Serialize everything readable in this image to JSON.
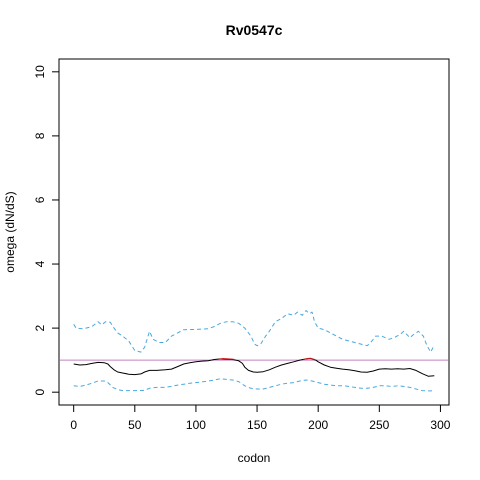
{
  "chart_data": {
    "type": "line",
    "title": "Rv0547c",
    "xlabel": "codon",
    "ylabel": "omega (dN/dS)",
    "xlim": [
      -12,
      307
    ],
    "ylim": [
      -0.4,
      10.4
    ],
    "x_ticks": [
      0,
      50,
      100,
      150,
      200,
      250,
      300
    ],
    "y_ticks": [
      0,
      2,
      4,
      6,
      8,
      10
    ],
    "reference_line": {
      "y": 1,
      "color": "#c080c0"
    },
    "colors": {
      "main": "#000000",
      "bounds": "#4aa8e0",
      "highlight": "#d02020"
    },
    "series": [
      {
        "role": "estimate",
        "style": "solid",
        "color": "#000000",
        "points": [
          [
            0,
            0.88
          ],
          [
            5,
            0.85
          ],
          [
            10,
            0.86
          ],
          [
            15,
            0.9
          ],
          [
            20,
            0.93
          ],
          [
            25,
            0.92
          ],
          [
            28,
            0.88
          ],
          [
            30,
            0.8
          ],
          [
            33,
            0.7
          ],
          [
            36,
            0.63
          ],
          [
            40,
            0.6
          ],
          [
            45,
            0.56
          ],
          [
            50,
            0.55
          ],
          [
            55,
            0.57
          ],
          [
            58,
            0.63
          ],
          [
            62,
            0.68
          ],
          [
            68,
            0.68
          ],
          [
            75,
            0.7
          ],
          [
            80,
            0.72
          ],
          [
            85,
            0.8
          ],
          [
            90,
            0.88
          ],
          [
            95,
            0.92
          ],
          [
            100,
            0.95
          ],
          [
            105,
            0.97
          ],
          [
            110,
            0.98
          ],
          [
            115,
            1.02
          ],
          [
            120,
            1.04
          ],
          [
            125,
            1.03
          ],
          [
            130,
            1.02
          ],
          [
            135,
            0.98
          ],
          [
            138,
            0.9
          ],
          [
            140,
            0.78
          ],
          [
            143,
            0.68
          ],
          [
            147,
            0.63
          ],
          [
            150,
            0.62
          ],
          [
            155,
            0.64
          ],
          [
            160,
            0.7
          ],
          [
            165,
            0.78
          ],
          [
            170,
            0.85
          ],
          [
            175,
            0.9
          ],
          [
            180,
            0.95
          ],
          [
            185,
            1.0
          ],
          [
            190,
            1.04
          ],
          [
            194,
            1.05
          ],
          [
            198,
            1.0
          ],
          [
            200,
            0.95
          ],
          [
            205,
            0.85
          ],
          [
            210,
            0.78
          ],
          [
            215,
            0.75
          ],
          [
            220,
            0.72
          ],
          [
            225,
            0.7
          ],
          [
            230,
            0.67
          ],
          [
            235,
            0.63
          ],
          [
            240,
            0.62
          ],
          [
            245,
            0.66
          ],
          [
            250,
            0.72
          ],
          [
            255,
            0.73
          ],
          [
            260,
            0.72
          ],
          [
            265,
            0.73
          ],
          [
            270,
            0.72
          ],
          [
            275,
            0.74
          ],
          [
            280,
            0.68
          ],
          [
            285,
            0.58
          ],
          [
            290,
            0.5
          ],
          [
            295,
            0.51
          ]
        ]
      },
      {
        "role": "upper bound",
        "style": "dashed",
        "color": "#4aa8e0",
        "points": [
          [
            0,
            2.12
          ],
          [
            2,
            2.0
          ],
          [
            8,
            1.98
          ],
          [
            15,
            2.05
          ],
          [
            20,
            2.2
          ],
          [
            23,
            2.1
          ],
          [
            26,
            2.2
          ],
          [
            30,
            2.18
          ],
          [
            33,
            2.0
          ],
          [
            36,
            1.85
          ],
          [
            40,
            1.75
          ],
          [
            45,
            1.6
          ],
          [
            50,
            1.3
          ],
          [
            55,
            1.25
          ],
          [
            58,
            1.4
          ],
          [
            62,
            1.9
          ],
          [
            65,
            1.65
          ],
          [
            70,
            1.55
          ],
          [
            75,
            1.55
          ],
          [
            80,
            1.75
          ],
          [
            85,
            1.85
          ],
          [
            90,
            1.95
          ],
          [
            100,
            1.96
          ],
          [
            110,
            1.98
          ],
          [
            115,
            2.05
          ],
          [
            120,
            2.15
          ],
          [
            125,
            2.2
          ],
          [
            130,
            2.2
          ],
          [
            135,
            2.15
          ],
          [
            140,
            2.0
          ],
          [
            145,
            1.75
          ],
          [
            148,
            1.5
          ],
          [
            150,
            1.45
          ],
          [
            153,
            1.5
          ],
          [
            157,
            1.75
          ],
          [
            160,
            1.9
          ],
          [
            165,
            2.2
          ],
          [
            170,
            2.3
          ],
          [
            175,
            2.45
          ],
          [
            180,
            2.4
          ],
          [
            183,
            2.5
          ],
          [
            187,
            2.4
          ],
          [
            190,
            2.55
          ],
          [
            193,
            2.45
          ],
          [
            195,
            2.5
          ],
          [
            197,
            2.2
          ],
          [
            200,
            2.0
          ],
          [
            205,
            1.95
          ],
          [
            210,
            1.85
          ],
          [
            215,
            1.75
          ],
          [
            220,
            1.65
          ],
          [
            225,
            1.6
          ],
          [
            230,
            1.55
          ],
          [
            235,
            1.5
          ],
          [
            240,
            1.45
          ],
          [
            243,
            1.55
          ],
          [
            247,
            1.75
          ],
          [
            252,
            1.75
          ],
          [
            258,
            1.65
          ],
          [
            262,
            1.7
          ],
          [
            267,
            1.8
          ],
          [
            270,
            1.9
          ],
          [
            275,
            1.7
          ],
          [
            278,
            1.8
          ],
          [
            282,
            1.9
          ],
          [
            286,
            1.75
          ],
          [
            289,
            1.45
          ],
          [
            292,
            1.25
          ],
          [
            294,
            1.4
          ],
          [
            295,
            1.45
          ]
        ]
      },
      {
        "role": "lower bound",
        "style": "dashed",
        "color": "#4aa8e0",
        "points": [
          [
            0,
            0.2
          ],
          [
            5,
            0.18
          ],
          [
            10,
            0.22
          ],
          [
            15,
            0.28
          ],
          [
            20,
            0.35
          ],
          [
            25,
            0.35
          ],
          [
            28,
            0.3
          ],
          [
            32,
            0.15
          ],
          [
            36,
            0.08
          ],
          [
            40,
            0.05
          ],
          [
            50,
            0.05
          ],
          [
            58,
            0.06
          ],
          [
            62,
            0.12
          ],
          [
            68,
            0.15
          ],
          [
            75,
            0.15
          ],
          [
            80,
            0.18
          ],
          [
            85,
            0.22
          ],
          [
            90,
            0.25
          ],
          [
            95,
            0.28
          ],
          [
            100,
            0.3
          ],
          [
            105,
            0.32
          ],
          [
            110,
            0.35
          ],
          [
            115,
            0.38
          ],
          [
            120,
            0.42
          ],
          [
            125,
            0.4
          ],
          [
            130,
            0.38
          ],
          [
            135,
            0.33
          ],
          [
            140,
            0.2
          ],
          [
            145,
            0.12
          ],
          [
            150,
            0.1
          ],
          [
            155,
            0.1
          ],
          [
            160,
            0.15
          ],
          [
            165,
            0.2
          ],
          [
            170,
            0.25
          ],
          [
            175,
            0.28
          ],
          [
            180,
            0.3
          ],
          [
            185,
            0.35
          ],
          [
            190,
            0.38
          ],
          [
            195,
            0.35
          ],
          [
            200,
            0.3
          ],
          [
            205,
            0.25
          ],
          [
            210,
            0.22
          ],
          [
            215,
            0.2
          ],
          [
            220,
            0.2
          ],
          [
            225,
            0.18
          ],
          [
            230,
            0.15
          ],
          [
            235,
            0.12
          ],
          [
            240,
            0.12
          ],
          [
            245,
            0.15
          ],
          [
            250,
            0.2
          ],
          [
            255,
            0.2
          ],
          [
            260,
            0.18
          ],
          [
            265,
            0.2
          ],
          [
            270,
            0.18
          ],
          [
            275,
            0.15
          ],
          [
            280,
            0.1
          ],
          [
            285,
            0.05
          ],
          [
            290,
            0.04
          ],
          [
            295,
            0.04
          ]
        ]
      }
    ],
    "highlight_segments": [
      {
        "color": "#d02020",
        "points": [
          [
            118,
            1.02
          ],
          [
            122,
            1.05
          ],
          [
            127,
            1.04
          ],
          [
            131,
            1.03
          ]
        ]
      },
      {
        "color": "#d02020",
        "points": [
          [
            188,
            1.02
          ],
          [
            191,
            1.05
          ],
          [
            194,
            1.06
          ],
          [
            197,
            1.02
          ]
        ]
      }
    ]
  }
}
